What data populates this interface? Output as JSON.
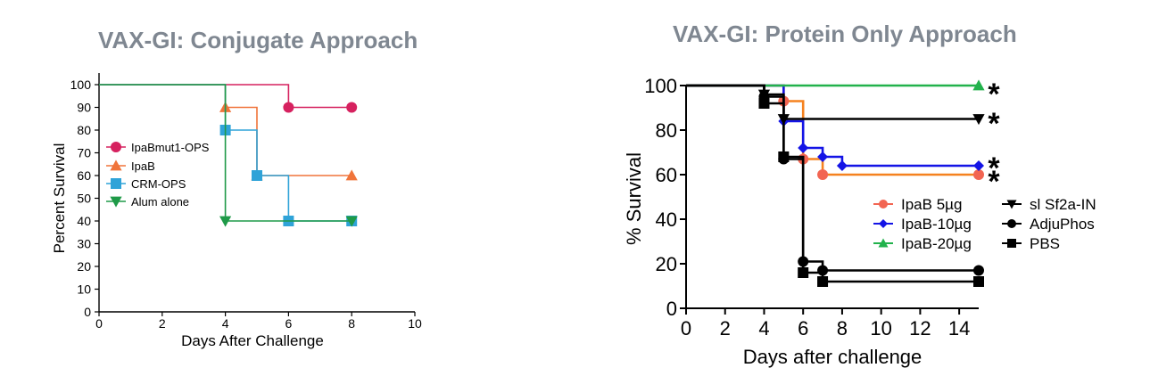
{
  "panels": [
    {
      "title": "VAX-GI:  Conjugate Approach"
    },
    {
      "title": "VAX-GI:  Protein Only Approach"
    }
  ],
  "chart_data": [
    {
      "type": "line",
      "title": "VAX-GI:  Conjugate Approach",
      "xlabel": "Days After Challenge",
      "ylabel": "Percent Survival",
      "xlim": [
        0,
        10
      ],
      "ylim": [
        0,
        100
      ],
      "x_ticks": [
        0,
        2,
        4,
        6,
        8,
        10
      ],
      "y_ticks": [
        0,
        10,
        20,
        30,
        40,
        50,
        60,
        70,
        80,
        90,
        100
      ],
      "legend_position": "left",
      "series": [
        {
          "name": "IpaBmut1-OPS",
          "color": "#d6215f",
          "marker": "circle",
          "steps": [
            [
              0,
              100
            ],
            [
              6,
              90
            ],
            [
              8,
              90
            ]
          ],
          "points": [
            [
              6,
              90
            ],
            [
              8,
              90
            ]
          ]
        },
        {
          "name": "IpaB",
          "color": "#f0743a",
          "marker": "triangle",
          "steps": [
            [
              0,
              100
            ],
            [
              4,
              90
            ],
            [
              5,
              60
            ],
            [
              8,
              60
            ]
          ],
          "points": [
            [
              4,
              90
            ],
            [
              5,
              60
            ],
            [
              8,
              60
            ]
          ]
        },
        {
          "name": "CRM-OPS",
          "color": "#2fa3d8",
          "marker": "square",
          "steps": [
            [
              0,
              100
            ],
            [
              4,
              80
            ],
            [
              5,
              60
            ],
            [
              6,
              40
            ],
            [
              8,
              40
            ]
          ],
          "points": [
            [
              4,
              80
            ],
            [
              5,
              60
            ],
            [
              6,
              40
            ],
            [
              8,
              40
            ]
          ]
        },
        {
          "name": "Alum alone",
          "color": "#1f9a48",
          "marker": "triangle-down",
          "steps": [
            [
              0,
              100
            ],
            [
              4,
              40
            ],
            [
              8,
              40
            ]
          ],
          "points": [
            [
              4,
              40
            ],
            [
              8,
              40
            ]
          ]
        }
      ]
    },
    {
      "type": "line",
      "title": "VAX-GI:  Protein Only Approach",
      "xlabel": "Days after challenge",
      "ylabel": "% Survival",
      "xlim": [
        0,
        15
      ],
      "ylim": [
        0,
        100
      ],
      "x_ticks": [
        0,
        2,
        4,
        6,
        8,
        10,
        12,
        14
      ],
      "y_ticks": [
        0,
        20,
        40,
        60,
        80,
        100
      ],
      "legend_position": "center-right",
      "annotations": [
        "*",
        "*",
        "*",
        "*"
      ],
      "series": [
        {
          "name": "IpaB 5µg",
          "color": "#f26552",
          "line_color": "#f5821f",
          "marker": "circle",
          "steps": [
            [
              0,
              100
            ],
            [
              5,
              93
            ],
            [
              6,
              67
            ],
            [
              7,
              60
            ],
            [
              15,
              60
            ]
          ],
          "points": [
            [
              5,
              93
            ],
            [
              6,
              67
            ],
            [
              7,
              60
            ],
            [
              15,
              60
            ]
          ]
        },
        {
          "name": "IpaB-10µg",
          "color": "#1414e6",
          "marker": "diamond",
          "steps": [
            [
              0,
              100
            ],
            [
              5,
              84
            ],
            [
              6,
              72
            ],
            [
              7,
              68
            ],
            [
              8,
              64
            ],
            [
              15,
              64
            ]
          ],
          "points": [
            [
              5,
              84
            ],
            [
              6,
              72
            ],
            [
              7,
              68
            ],
            [
              8,
              64
            ],
            [
              15,
              64
            ]
          ]
        },
        {
          "name": "IpaB-20µg",
          "color": "#22b24c",
          "marker": "triangle",
          "steps": [
            [
              0,
              100
            ],
            [
              15,
              100
            ]
          ],
          "points": [
            [
              15,
              100
            ]
          ]
        },
        {
          "name": "sl Sf2a-IN",
          "color": "#000000",
          "marker": "triangle-down",
          "steps": [
            [
              0,
              100
            ],
            [
              4,
              96
            ],
            [
              5,
              85
            ],
            [
              15,
              85
            ]
          ],
          "points": [
            [
              4,
              96
            ],
            [
              5,
              85
            ],
            [
              15,
              85
            ]
          ]
        },
        {
          "name": "AdjuPhos",
          "color": "#000000",
          "marker": "circle",
          "steps": [
            [
              0,
              100
            ],
            [
              4,
              95
            ],
            [
              5,
              67
            ],
            [
              6,
              21
            ],
            [
              7,
              17
            ],
            [
              15,
              17
            ]
          ],
          "points": [
            [
              4,
              95
            ],
            [
              5,
              67
            ],
            [
              6,
              21
            ],
            [
              7,
              17
            ],
            [
              15,
              17
            ]
          ]
        },
        {
          "name": "PBS",
          "color": "#000000",
          "marker": "square",
          "steps": [
            [
              0,
              100
            ],
            [
              4,
              92
            ],
            [
              5,
              68
            ],
            [
              6,
              16
            ],
            [
              7,
              12
            ],
            [
              15,
              12
            ]
          ],
          "points": [
            [
              4,
              92
            ],
            [
              5,
              68
            ],
            [
              6,
              16
            ],
            [
              7,
              12
            ],
            [
              15,
              12
            ]
          ]
        }
      ]
    }
  ]
}
